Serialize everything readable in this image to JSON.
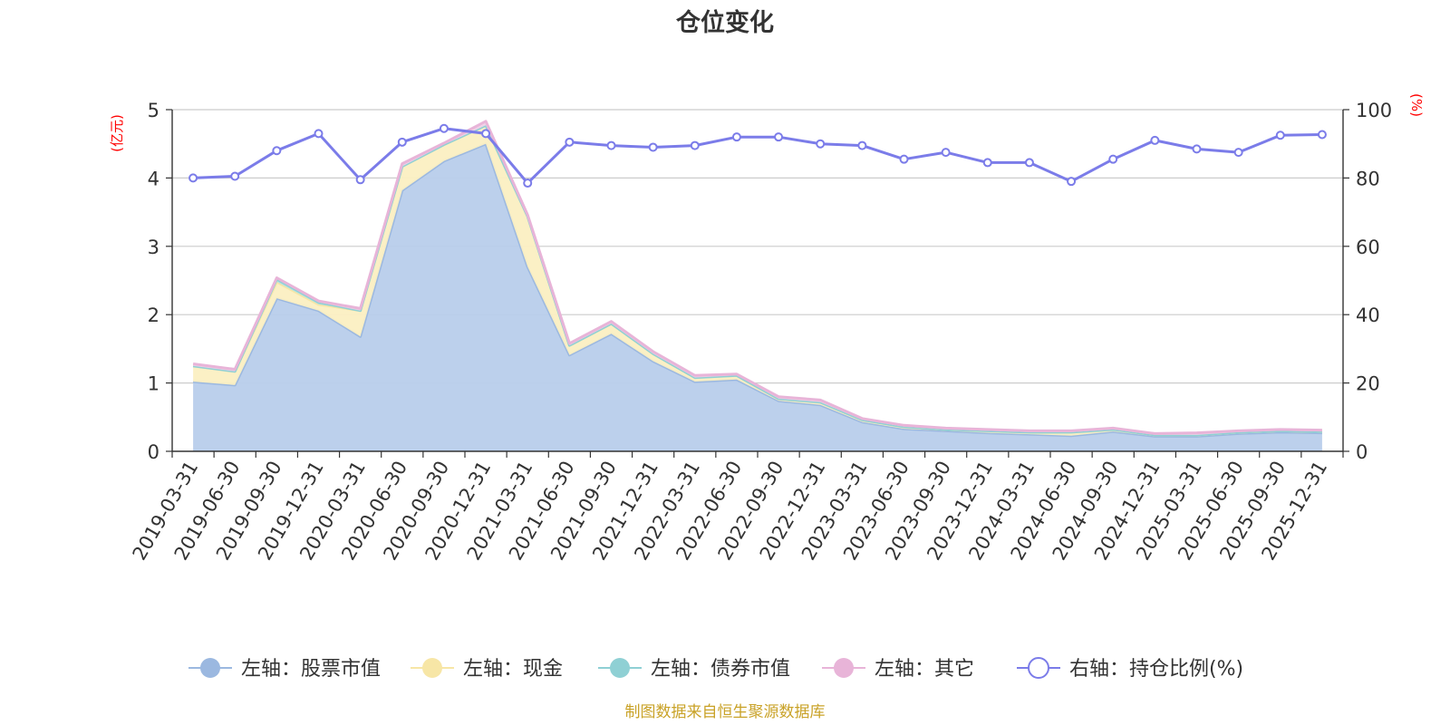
{
  "chart_data": {
    "type": "area",
    "title": "仓位变化",
    "source": "制图数据来自恒生聚源数据库",
    "left_unit": "(亿元)",
    "right_unit": "(%)",
    "left_axis": {
      "min": 0,
      "max": 5,
      "ticks": [
        "0",
        "1",
        "2",
        "3",
        "4",
        "5"
      ]
    },
    "right_axis": {
      "min": 0,
      "max": 100,
      "ticks": [
        "0",
        "20",
        "40",
        "60",
        "80",
        "100"
      ]
    },
    "categories": [
      "2019-03-31",
      "2019-06-30",
      "2019-09-30",
      "2019-12-31",
      "2020-03-31",
      "2020-06-30",
      "2020-09-30",
      "2020-12-31",
      "2021-03-31",
      "2021-06-30",
      "2021-09-30",
      "2021-12-31",
      "2022-03-31",
      "2022-06-30",
      "2022-09-30",
      "2022-12-31",
      "2023-03-31",
      "2023-06-30",
      "2023-09-30",
      "2023-12-31",
      "2024-03-31",
      "2024-06-30",
      "2024-09-30",
      "2024-12-31",
      "2025-03-31",
      "2025-06-30",
      "2025-09-30",
      "2025-12-31"
    ],
    "series": [
      {
        "name": "左轴：股票市值",
        "axis": "left",
        "stack": true,
        "color": "#9bb8e0",
        "fill": "#b8cdeb",
        "values": [
          1.02,
          0.97,
          2.24,
          2.06,
          1.68,
          3.82,
          4.25,
          4.5,
          2.7,
          1.41,
          1.72,
          1.32,
          1.02,
          1.05,
          0.74,
          0.68,
          0.43,
          0.33,
          0.3,
          0.27,
          0.25,
          0.23,
          0.29,
          0.22,
          0.22,
          0.26,
          0.28,
          0.27
        ]
      },
      {
        "name": "左轴：现金",
        "axis": "left",
        "stack": true,
        "color": "#f7e6a6",
        "fill": "#fbefc2",
        "values": [
          0.23,
          0.2,
          0.24,
          0.09,
          0.38,
          0.35,
          0.24,
          0.27,
          0.74,
          0.14,
          0.15,
          0.11,
          0.06,
          0.06,
          0.03,
          0.04,
          0.03,
          0.03,
          0.02,
          0.03,
          0.03,
          0.05,
          0.03,
          0.02,
          0.02,
          0.02,
          0.02,
          0.02
        ]
      },
      {
        "name": "左轴：债券市值",
        "axis": "left",
        "stack": true,
        "color": "#8fd0d4",
        "fill": "#b4e0e3",
        "values": [
          0,
          0,
          0.04,
          0.03,
          0,
          0,
          0,
          0,
          0,
          0,
          0,
          0,
          0,
          0,
          0,
          0,
          0,
          0,
          0,
          0,
          0,
          0,
          0,
          0,
          0,
          0,
          0,
          0
        ]
      },
      {
        "name": "左轴：其它",
        "axis": "left",
        "stack": true,
        "color": "#e8b4d8",
        "fill": "#f2d2e8",
        "values": [
          0.03,
          0.03,
          0.02,
          0.02,
          0.03,
          0.04,
          0.02,
          0.06,
          0.02,
          0.03,
          0.03,
          0.03,
          0.03,
          0.02,
          0.03,
          0.03,
          0.02,
          0.02,
          0.02,
          0.02,
          0.02,
          0.02,
          0.02,
          0.02,
          0.03,
          0.02,
          0.02,
          0.02
        ]
      },
      {
        "name": "右轴：持仓比例(%)",
        "axis": "right",
        "type": "line",
        "color": "#7b7ce9",
        "values": [
          80,
          80.5,
          88,
          93,
          79.5,
          90.5,
          94.5,
          93,
          78.5,
          90.5,
          89.5,
          89,
          89.5,
          92,
          92,
          90,
          89.5,
          85.5,
          87.5,
          84.5,
          84.5,
          79,
          85.5,
          91,
          88.5,
          87.5,
          92.5,
          92.7
        ]
      }
    ]
  }
}
